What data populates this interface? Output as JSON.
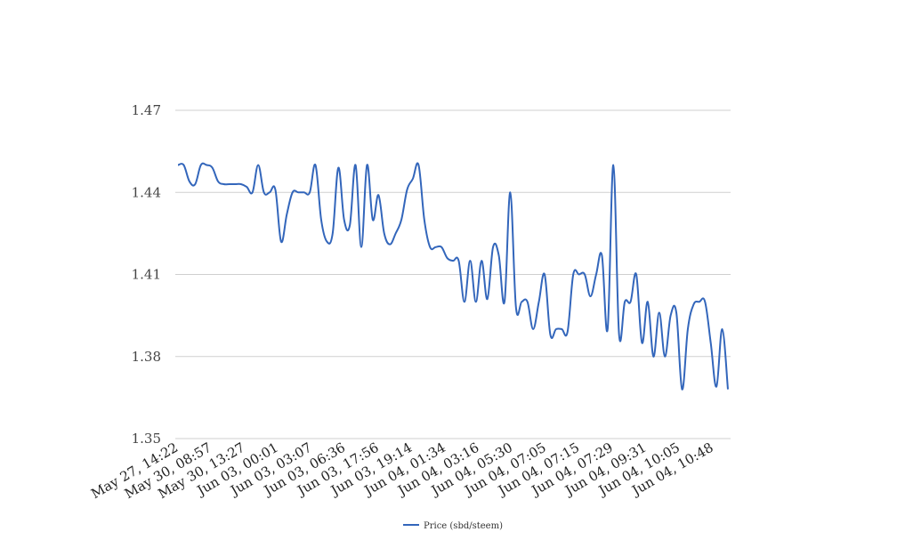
{
  "chart_data": {
    "type": "line",
    "title": "",
    "xlabel": "",
    "ylabel": "",
    "ylim": [
      1.35,
      1.47
    ],
    "y_ticks": [
      "1.35",
      "1.38",
      "1.41",
      "1.44",
      "1.47"
    ],
    "grid": "horizontal",
    "legend_position": "bottom-center",
    "x_tick_labels": [
      "May 27, 14:22",
      "May 30, 08:57",
      "May 30, 13:27",
      "Jun 03, 00:01",
      "Jun 03, 03:07",
      "Jun 03, 06:36",
      "Jun 03, 17:56",
      "Jun 03, 19:14",
      "Jun 04, 01:34",
      "Jun 04, 03:16",
      "Jun 04, 05:30",
      "Jun 04, 07:05",
      "Jun 04, 07:15",
      "Jun 04, 07:29",
      "Jun 04, 09:31",
      "Jun 04, 10:05",
      "Jun 04, 10:48"
    ],
    "series": [
      {
        "name": "Price (sbd/steem)",
        "color": "#3366bb",
        "values": [
          1.45,
          1.45,
          1.444,
          1.443,
          1.45,
          1.45,
          1.449,
          1.444,
          1.443,
          1.443,
          1.443,
          1.443,
          1.442,
          1.44,
          1.45,
          1.44,
          1.44,
          1.441,
          1.422,
          1.432,
          1.44,
          1.44,
          1.44,
          1.44,
          1.45,
          1.43,
          1.422,
          1.425,
          1.449,
          1.43,
          1.428,
          1.45,
          1.42,
          1.45,
          1.43,
          1.439,
          1.425,
          1.421,
          1.425,
          1.43,
          1.441,
          1.445,
          1.45,
          1.43,
          1.42,
          1.42,
          1.42,
          1.416,
          1.415,
          1.415,
          1.4,
          1.415,
          1.4,
          1.415,
          1.401,
          1.42,
          1.417,
          1.4,
          1.44,
          1.398,
          1.4,
          1.4,
          1.39,
          1.4,
          1.41,
          1.388,
          1.39,
          1.39,
          1.389,
          1.41,
          1.41,
          1.41,
          1.402,
          1.41,
          1.417,
          1.39,
          1.45,
          1.388,
          1.4,
          1.4,
          1.41,
          1.385,
          1.4,
          1.38,
          1.396,
          1.38,
          1.395,
          1.396,
          1.368,
          1.39,
          1.399,
          1.4,
          1.4,
          1.385,
          1.369,
          1.39,
          1.368
        ]
      }
    ]
  }
}
